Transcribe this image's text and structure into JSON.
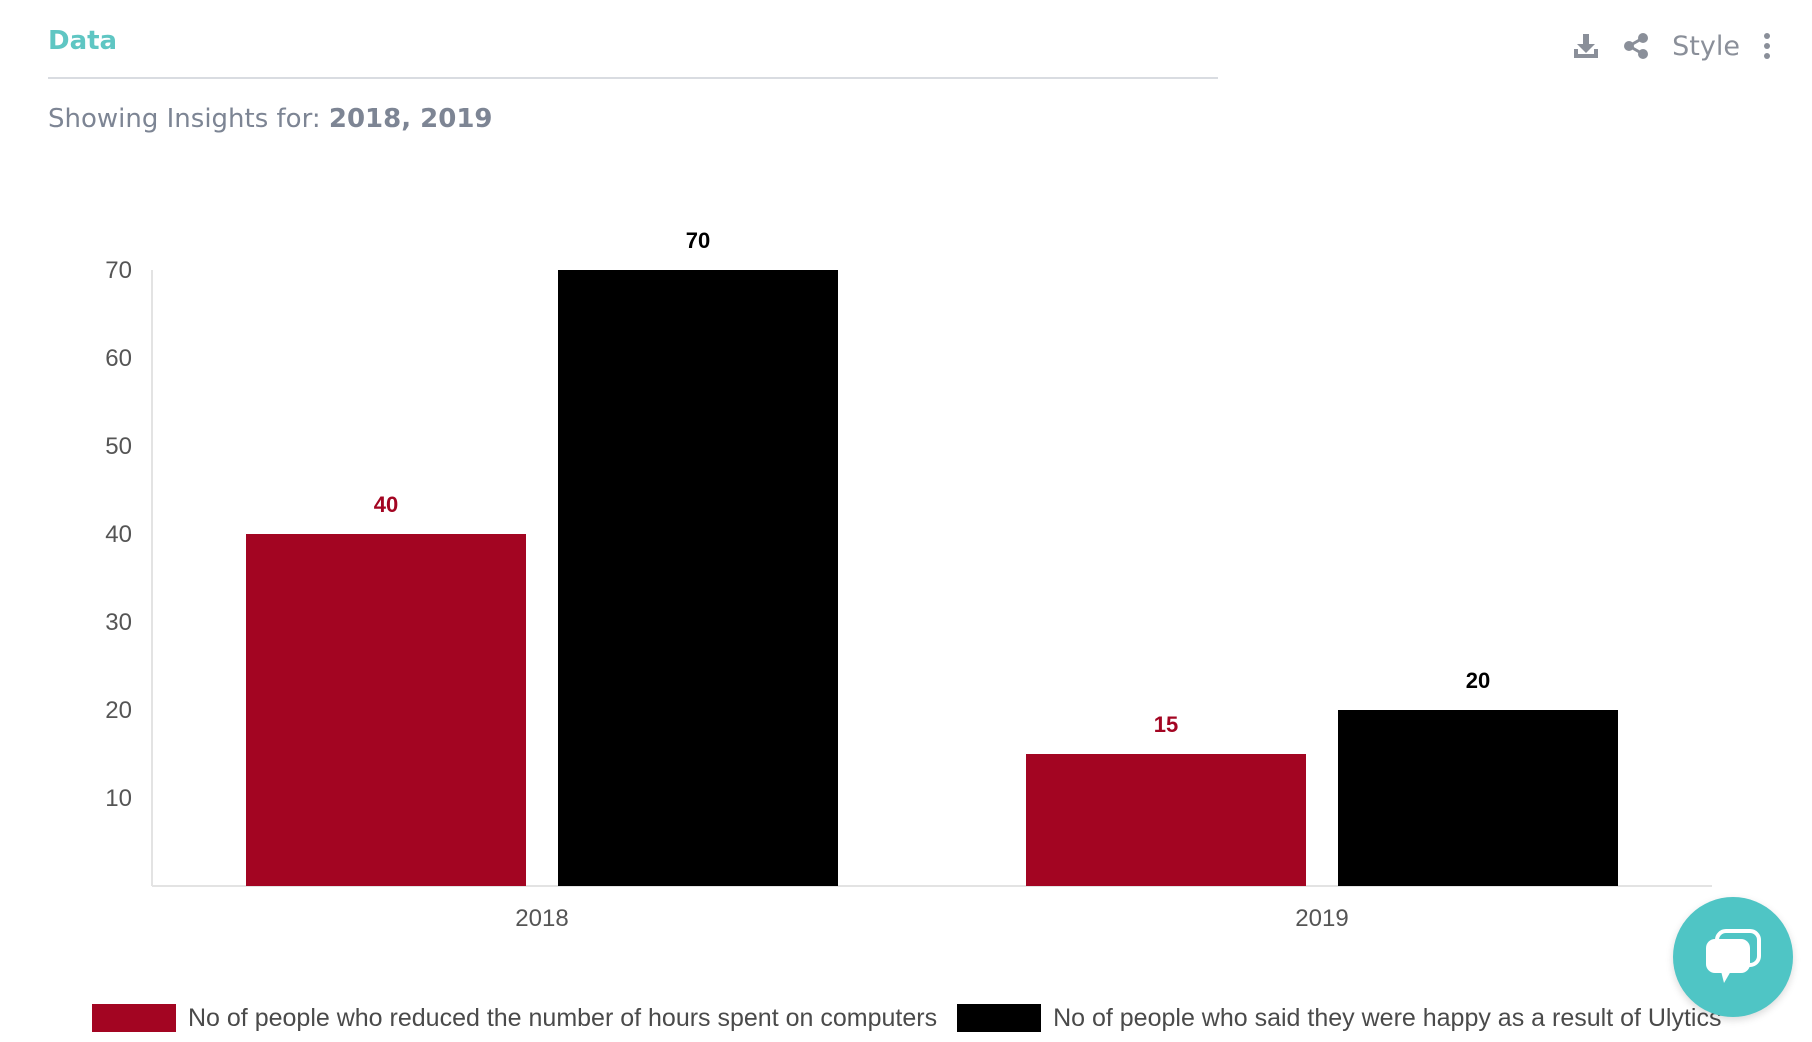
{
  "header": {
    "tab_label": "Data",
    "style_label": "Style",
    "insights_prefix": "Showing Insights for:",
    "insights_years": "2018, 2019",
    "icons": [
      "download-icon",
      "share-icon",
      "more-vertical-icon"
    ]
  },
  "chart_data": {
    "type": "bar",
    "categories": [
      "2018",
      "2019"
    ],
    "series": [
      {
        "name": "No of people who reduced the number of hours spent on computers",
        "values": [
          40,
          15
        ],
        "color": "#a30522"
      },
      {
        "name": "No of people who said they were happy as a result of Ulytics",
        "values": [
          70,
          20
        ],
        "color": "#000000"
      }
    ],
    "yticks": [
      10,
      20,
      30,
      40,
      50,
      60,
      70
    ],
    "ylim": [
      0,
      70
    ],
    "title": "",
    "xlabel": "",
    "ylabel": "",
    "legend_position": "bottom",
    "grid": false
  },
  "chat": {
    "icon": "chat-icon",
    "color": "#4fc5c5"
  }
}
